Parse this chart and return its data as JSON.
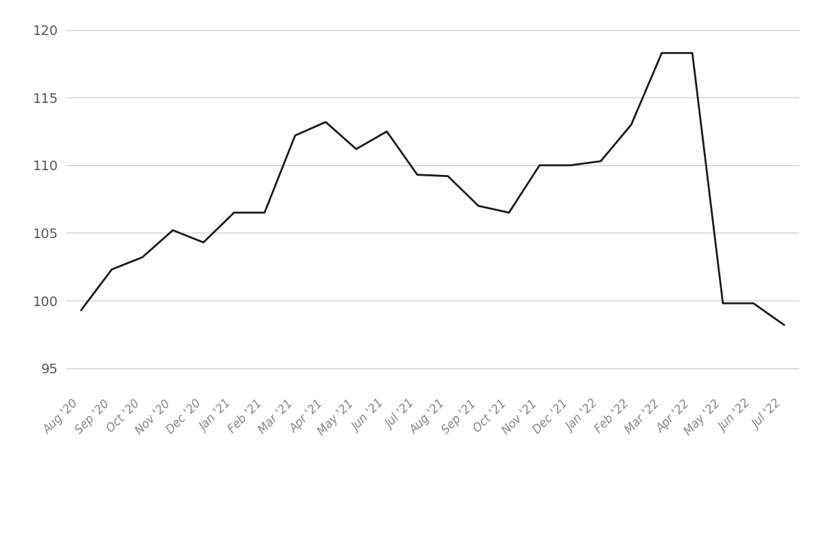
{
  "labels": [
    "Aug '20",
    "Sep '20",
    "Oct '20",
    "Nov '20",
    "Dec '20",
    "Jan '21",
    "Feb '21",
    "Mar '21",
    "Apr '21",
    "May '21",
    "Jun '21",
    "Jul '21",
    "Aug '21",
    "Sep '21",
    "Oct '21",
    "Nov '21",
    "Dec '21",
    "Jan '22",
    "Feb '22",
    "Mar '22",
    "Apr '22",
    "May '22",
    "Jun '22",
    "Jul '22"
  ],
  "values": [
    99.3,
    102.3,
    103.2,
    105.2,
    104.3,
    106.5,
    106.5,
    112.2,
    113.2,
    111.2,
    112.5,
    109.3,
    109.2,
    107.0,
    106.5,
    110.0,
    110.0,
    110.3,
    113.0,
    118.3,
    118.3,
    99.8,
    99.8,
    98.2
  ],
  "line_color": "#1a1a1a",
  "line_width": 2.0,
  "ylim": [
    93,
    121
  ],
  "yticks": [
    95,
    100,
    105,
    110,
    115,
    120
  ],
  "background_color": "#ffffff",
  "grid_color": "#c8c8c8",
  "legend_line_color": "#1a1a1a",
  "legend_fontsize": 14,
  "tick_fontsize": 12,
  "ytick_fontsize": 14,
  "ytick_color": "#555555",
  "xtick_color": "#888888",
  "xlabel_rotation": 45
}
